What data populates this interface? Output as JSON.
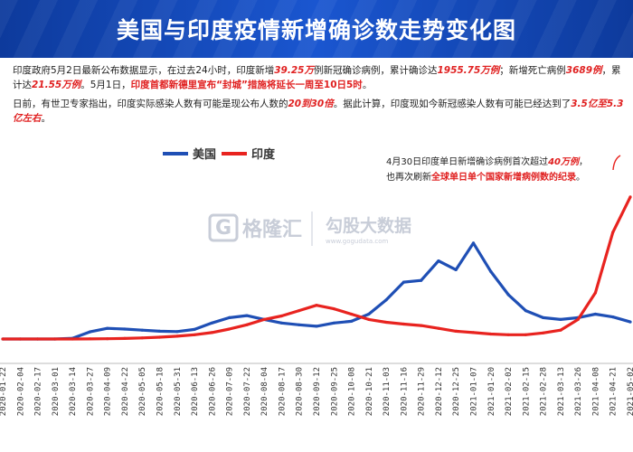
{
  "header": {
    "title": "美国与印度疫情新增确诊数走势变化图"
  },
  "notes": {
    "p1": {
      "t1": "印度政府5月2日最新公布数据显示，在过去24小时，印度新增",
      "v1": "39.25万",
      "t2": "例新冠确诊病例，累计确诊达",
      "v2": "1955.75万例",
      "t3": "；新增死亡病例",
      "v3": "3689例",
      "t4": "，累计达",
      "v4": "21.55万例",
      "t5": "。5月1日，",
      "v5": "印度首都新德里宣布“封城”措施将延长一周至10日5时",
      "t6": "。"
    },
    "p2": {
      "t1": "日前，有世卫专家指出，印度实际感染人数有可能是现公布人数的",
      "v1": "20到30倍",
      "t2": "。据此计算，印度现如今新冠感染人数有可能已经达到了",
      "v2": "3.5亿至5.3亿左右",
      "t3": "。"
    }
  },
  "legend": {
    "us": "美国",
    "india": "印度"
  },
  "annotation": {
    "line1_a": "4月30日印度单日新增确诊病例首次超过",
    "line1_b": "40万例",
    "line1_c": "，",
    "line2_a": "也再次刷新",
    "line2_b": "全球单日单个国家新增病例数的纪录",
    "line2_c": "。"
  },
  "watermark": {
    "brand": "格隆汇",
    "brand2": "勾股大数据",
    "url": "www.gogudata.com"
  },
  "colors": {
    "us": "#1f4fb5",
    "india": "#e8231f",
    "header": "#1a56d0"
  },
  "chart_data": {
    "type": "line",
    "title": "美国与印度疫情新增确诊数走势变化图",
    "xlabel": "",
    "ylabel": "",
    "ylim": [
      0,
      420000
    ],
    "x": [
      "2020-01-22",
      "2020-02-04",
      "2020-02-17",
      "2020-03-01",
      "2020-03-14",
      "2020-03-27",
      "2020-04-09",
      "2020-04-22",
      "2020-05-05",
      "2020-05-18",
      "2020-05-31",
      "2020-06-13",
      "2020-06-26",
      "2020-07-09",
      "2020-07-22",
      "2020-08-04",
      "2020-08-17",
      "2020-08-30",
      "2020-09-12",
      "2020-09-25",
      "2020-10-08",
      "2020-10-21",
      "2020-11-03",
      "2020-11-16",
      "2020-11-29",
      "2020-12-12",
      "2020-12-25",
      "2021-01-07",
      "2021-01-20",
      "2021-02-02",
      "2021-02-15",
      "2021-02-28",
      "2021-03-13",
      "2021-03-26",
      "2021-04-08",
      "2021-04-21",
      "2021-05-02"
    ],
    "series": [
      {
        "name": "美国",
        "values": [
          0,
          0,
          0,
          0,
          2000,
          20000,
          30000,
          28000,
          25000,
          22000,
          21000,
          27000,
          45000,
          60000,
          66000,
          55000,
          45000,
          40000,
          36000,
          45000,
          50000,
          70000,
          110000,
          160000,
          165000,
          220000,
          195000,
          270000,
          190000,
          125000,
          80000,
          60000,
          55000,
          60000,
          70000,
          62000,
          48000
        ]
      },
      {
        "name": "印度",
        "values": [
          0,
          0,
          0,
          0,
          0,
          200,
          800,
          1500,
          3000,
          5000,
          8000,
          12000,
          18000,
          28000,
          40000,
          55000,
          65000,
          80000,
          95000,
          85000,
          70000,
          55000,
          47000,
          42000,
          38000,
          30000,
          22000,
          18000,
          14000,
          12000,
          12000,
          17000,
          25000,
          55000,
          130000,
          300000,
          400000
        ]
      }
    ]
  }
}
